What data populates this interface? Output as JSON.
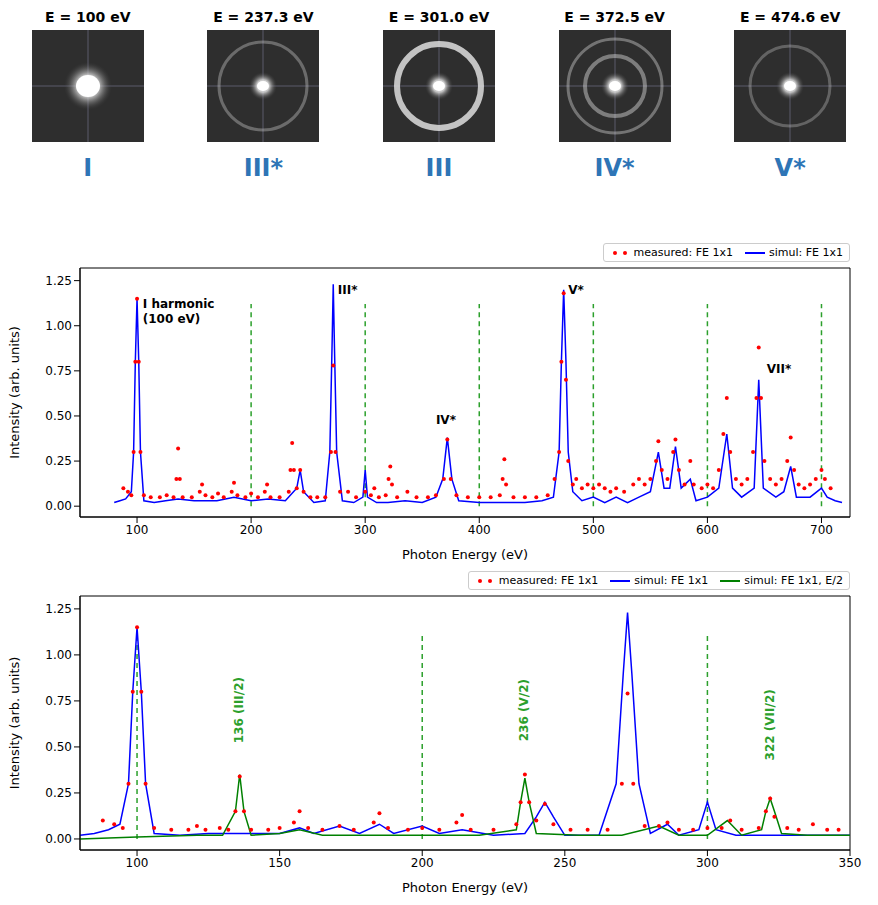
{
  "panels": [
    {
      "energy_label": "E = 100 eV",
      "harmonic": "I"
    },
    {
      "energy_label": "E = 237.3 eV",
      "harmonic": "III*"
    },
    {
      "energy_label": "E = 301.0 eV",
      "harmonic": "III"
    },
    {
      "energy_label": "E = 372.5 eV",
      "harmonic": "IV*"
    },
    {
      "energy_label": "E = 474.6 eV",
      "harmonic": "V*"
    }
  ],
  "chart_data": [
    {
      "type": "line",
      "x_label": "Photon Energy (eV)",
      "y_label": "Intensity (arb. units)",
      "xlim": [
        50,
        725
      ],
      "xticks": [
        100,
        200,
        300,
        400,
        500,
        600,
        700
      ],
      "ylim": [
        -0.06,
        1.32
      ],
      "yticks": [
        {
          "value": 0,
          "label": "0.00"
        },
        {
          "value": 0.25,
          "label": "0.25"
        },
        {
          "value": 0.5,
          "label": "0.50"
        },
        {
          "value": 0.75,
          "label": "0.75"
        },
        {
          "value": 1,
          "label": "1.00"
        },
        {
          "value": 1.25,
          "label": "1.25"
        }
      ],
      "legend": "top right",
      "series": [
        {
          "name": "measured: FE 1x1",
          "color": "#ff0000",
          "type": "scatter",
          "marker": "dot",
          "x": [
            88,
            92,
            95,
            97,
            98.5,
            100,
            101.5,
            103,
            106,
            112,
            120,
            126,
            132,
            134.5,
            136,
            137.5,
            140,
            148,
            155,
            157,
            160,
            166,
            171,
            176,
            183,
            185,
            188,
            195,
            200,
            206,
            212,
            214,
            217,
            225,
            233,
            234.5,
            236,
            237.5,
            240,
            243,
            246,
            252,
            258,
            265,
            270,
            272,
            274,
            278,
            285,
            292,
            300,
            305,
            308,
            312,
            318,
            320.5,
            322,
            323.5,
            328,
            337,
            345,
            355,
            362,
            369,
            372,
            375,
            380,
            390,
            400,
            410,
            418,
            420.5,
            422,
            423.5,
            430,
            440,
            450,
            460,
            466,
            470,
            472,
            474,
            476,
            478,
            482,
            485,
            490,
            495,
            500,
            505,
            510,
            515,
            520,
            527,
            535,
            540,
            545,
            550,
            555,
            557,
            560,
            565,
            570,
            572,
            575,
            580,
            585,
            588,
            595,
            600,
            605,
            610,
            614,
            617,
            620,
            625,
            630,
            635,
            640,
            643,
            645,
            647,
            650,
            655,
            660,
            665,
            670,
            673,
            676,
            680,
            685,
            690,
            695,
            700,
            703,
            708
          ],
          "values": [
            0.1,
            0.08,
            0.06,
            0.3,
            0.8,
            1.15,
            0.8,
            0.3,
            0.06,
            0.05,
            0.05,
            0.06,
            0.05,
            0.15,
            0.32,
            0.15,
            0.05,
            0.05,
            0.08,
            0.12,
            0.06,
            0.05,
            0.07,
            0.05,
            0.08,
            0.13,
            0.06,
            0.05,
            0.07,
            0.05,
            0.08,
            0.12,
            0.05,
            0.05,
            0.08,
            0.2,
            0.35,
            0.2,
            0.1,
            0.2,
            0.08,
            0.05,
            0.05,
            0.05,
            0.3,
            0.78,
            0.3,
            0.08,
            0.08,
            0.05,
            0.08,
            0.06,
            0.1,
            0.05,
            0.06,
            0.15,
            0.22,
            0.12,
            0.05,
            0.08,
            0.05,
            0.05,
            0.06,
            0.15,
            0.37,
            0.15,
            0.06,
            0.05,
            0.05,
            0.05,
            0.06,
            0.15,
            0.26,
            0.12,
            0.05,
            0.05,
            0.05,
            0.06,
            0.15,
            0.3,
            0.8,
            1.18,
            0.7,
            0.25,
            0.12,
            0.15,
            0.1,
            0.12,
            0.1,
            0.12,
            0.1,
            0.08,
            0.1,
            0.08,
            0.12,
            0.15,
            0.12,
            0.15,
            0.25,
            0.36,
            0.2,
            0.15,
            0.3,
            0.37,
            0.2,
            0.12,
            0.25,
            0.12,
            0.1,
            0.12,
            0.1,
            0.2,
            0.4,
            0.6,
            0.3,
            0.15,
            0.12,
            0.15,
            0.3,
            0.6,
            0.88,
            0.6,
            0.25,
            0.15,
            0.12,
            0.15,
            0.25,
            0.38,
            0.2,
            0.12,
            0.1,
            0.12,
            0.15,
            0.2,
            0.15,
            0.1
          ]
        },
        {
          "name": "simul: FE 1x1",
          "color": "#0000ff",
          "type": "line",
          "line_style": "solid",
          "x": [
            80,
            85,
            90,
            95,
            97,
            98.5,
            100,
            101.5,
            103,
            106,
            115,
            125,
            136,
            150,
            170,
            185,
            200,
            215,
            230,
            240,
            243,
            246,
            255,
            265,
            269,
            271,
            272,
            273,
            275,
            280,
            290,
            298,
            300,
            302,
            310,
            320,
            335,
            350,
            362,
            368,
            372,
            376,
            382,
            400,
            420,
            440,
            455,
            465,
            470,
            472,
            474,
            476,
            478,
            482,
            490,
            500,
            510,
            520,
            530,
            540,
            550,
            557,
            562,
            567,
            572,
            577,
            585,
            590,
            600,
            610,
            617,
            622,
            630,
            641,
            645,
            649,
            660,
            667,
            673,
            678,
            690,
            700,
            705,
            712,
            718
          ],
          "values": [
            0.02,
            0.03,
            0.04,
            0.08,
            0.3,
            0.8,
            1.15,
            0.8,
            0.3,
            0.03,
            0.02,
            0.03,
            0.04,
            0.03,
            0.03,
            0.05,
            0.03,
            0.04,
            0.03,
            0.1,
            0.2,
            0.08,
            0.02,
            0.03,
            0.3,
            0.9,
            1.23,
            0.9,
            0.3,
            0.03,
            0.02,
            0.05,
            0.2,
            0.05,
            0.02,
            0.02,
            0.03,
            0.02,
            0.05,
            0.15,
            0.38,
            0.15,
            0.03,
            0.02,
            0.02,
            0.02,
            0.03,
            0.05,
            0.3,
            0.8,
            1.2,
            0.8,
            0.3,
            0.08,
            0.03,
            0.05,
            0.02,
            0.05,
            0.02,
            0.05,
            0.08,
            0.3,
            0.1,
            0.1,
            0.33,
            0.1,
            0.15,
            0.03,
            0.05,
            0.1,
            0.4,
            0.1,
            0.05,
            0.1,
            0.7,
            0.1,
            0.05,
            0.08,
            0.22,
            0.05,
            0.05,
            0.1,
            0.05,
            0.03,
            0.02
          ]
        }
      ],
      "vlines": {
        "x": [
          200,
          300,
          400,
          500,
          600,
          700
        ],
        "span": [
          0,
          1.12
        ],
        "color": "#2ca02c",
        "line_style": "dashed"
      },
      "annotations": [
        {
          "text": "I harmonic\n(100 eV)",
          "x": 105,
          "y": 1.12,
          "color": "#000000"
        },
        {
          "text": "III*",
          "x": 276,
          "y": 1.2,
          "color": "#000000"
        },
        {
          "text": "IV*",
          "x": 362,
          "y": 0.48,
          "color": "#000000"
        },
        {
          "text": "V*",
          "x": 478,
          "y": 1.2,
          "color": "#000000"
        },
        {
          "text": "VII*",
          "x": 652,
          "y": 0.76,
          "color": "#000000"
        }
      ]
    },
    {
      "type": "line",
      "x_label": "Photon Energy (eV)",
      "y_label": "Intensity (arb. units)",
      "xlim": [
        80,
        350
      ],
      "xticks": [
        100,
        150,
        200,
        250,
        300,
        350
      ],
      "ylim": [
        -0.06,
        1.32
      ],
      "yticks": [
        {
          "value": 0,
          "label": "0.00"
        },
        {
          "value": 0.25,
          "label": "0.25"
        },
        {
          "value": 0.5,
          "label": "0.50"
        },
        {
          "value": 0.75,
          "label": "0.75"
        },
        {
          "value": 1,
          "label": "1.00"
        },
        {
          "value": 1.25,
          "label": "1.25"
        }
      ],
      "legend": "top right",
      "series": [
        {
          "name": "measured: FE 1x1",
          "color": "#ff0000",
          "type": "scatter",
          "marker": "dot",
          "x": [
            88,
            92,
            95,
            97,
            98.5,
            100,
            101.5,
            103,
            106,
            112,
            118,
            121,
            124,
            129,
            132,
            134.5,
            136,
            137.5,
            140,
            146,
            150,
            155,
            157,
            160,
            165,
            171,
            176,
            183,
            185,
            188,
            195,
            200,
            206,
            212,
            214,
            217,
            225,
            233,
            234.5,
            236,
            237.5,
            240,
            243,
            246,
            252,
            258,
            265,
            270,
            272,
            274,
            278,
            283,
            286,
            290,
            295,
            300,
            305,
            308,
            312,
            318,
            320.5,
            322,
            323.5,
            328,
            332,
            337,
            342,
            346
          ],
          "values": [
            0.1,
            0.08,
            0.06,
            0.3,
            0.8,
            1.15,
            0.8,
            0.3,
            0.06,
            0.05,
            0.05,
            0.07,
            0.05,
            0.06,
            0.05,
            0.15,
            0.34,
            0.15,
            0.05,
            0.05,
            0.06,
            0.09,
            0.15,
            0.06,
            0.05,
            0.07,
            0.05,
            0.09,
            0.14,
            0.06,
            0.05,
            0.06,
            0.05,
            0.09,
            0.13,
            0.05,
            0.05,
            0.08,
            0.2,
            0.35,
            0.2,
            0.1,
            0.19,
            0.08,
            0.05,
            0.05,
            0.05,
            0.3,
            0.79,
            0.3,
            0.07,
            0.07,
            0.09,
            0.05,
            0.05,
            0.06,
            0.06,
            0.1,
            0.05,
            0.06,
            0.15,
            0.22,
            0.12,
            0.06,
            0.05,
            0.08,
            0.05,
            0.05
          ]
        },
        {
          "name": "simul: FE 1x1",
          "color": "#0000ff",
          "type": "line",
          "line_style": "solid",
          "x": [
            80,
            85,
            90,
            94,
            97,
            98.5,
            100,
            101.5,
            103,
            106,
            115,
            125,
            136,
            150,
            157,
            162,
            171,
            178,
            185,
            190,
            200,
            206,
            214,
            225,
            236,
            240,
            243,
            246,
            250,
            262,
            268,
            270.5,
            272,
            273.5,
            276,
            280,
            286,
            290,
            297,
            300,
            303,
            310,
            320,
            330,
            340,
            350
          ],
          "values": [
            0.02,
            0.03,
            0.05,
            0.08,
            0.3,
            0.8,
            1.15,
            0.8,
            0.3,
            0.03,
            0.02,
            0.03,
            0.03,
            0.03,
            0.06,
            0.03,
            0.07,
            0.03,
            0.08,
            0.03,
            0.07,
            0.03,
            0.05,
            0.02,
            0.03,
            0.12,
            0.2,
            0.12,
            0.02,
            0.02,
            0.3,
            0.9,
            1.23,
            0.9,
            0.3,
            0.03,
            0.08,
            0.02,
            0.05,
            0.2,
            0.05,
            0.02,
            0.02,
            0.02,
            0.02,
            0.02
          ]
        },
        {
          "name": "simul: FE 1x1, E/2",
          "color": "#008000",
          "type": "line",
          "line_style": "solid",
          "x": [
            80,
            100,
            121,
            130,
            134.5,
            136,
            137.5,
            140,
            150,
            157,
            165,
            185,
            200,
            220,
            233,
            234.5,
            236,
            237.5,
            240,
            255,
            270,
            283,
            290,
            300,
            307,
            312,
            319,
            320.5,
            322,
            323.5,
            326,
            335,
            350
          ],
          "values": [
            0,
            0.01,
            0.02,
            0.02,
            0.15,
            0.35,
            0.15,
            0.02,
            0.03,
            0.05,
            0.02,
            0.02,
            0.02,
            0.02,
            0.05,
            0.2,
            0.33,
            0.2,
            0.03,
            0.02,
            0.02,
            0.07,
            0.02,
            0.02,
            0.1,
            0.02,
            0.05,
            0.15,
            0.22,
            0.15,
            0.03,
            0.02,
            0.02
          ]
        }
      ],
      "vlines": {
        "x": [
          100,
          200,
          300
        ],
        "span": [
          0,
          1.12
        ],
        "color": "#2ca02c",
        "line_style": "dashed"
      },
      "annotations": [
        {
          "text": "136 (III/2)",
          "x": 136,
          "y": 0.7,
          "color": "#2ca02c"
        },
        {
          "text": "236 (V/2)",
          "x": 236,
          "y": 0.7,
          "color": "#2ca02c"
        },
        {
          "text": "322 (VII/2)",
          "x": 322,
          "y": 0.62,
          "color": "#2ca02c"
        }
      ]
    }
  ]
}
